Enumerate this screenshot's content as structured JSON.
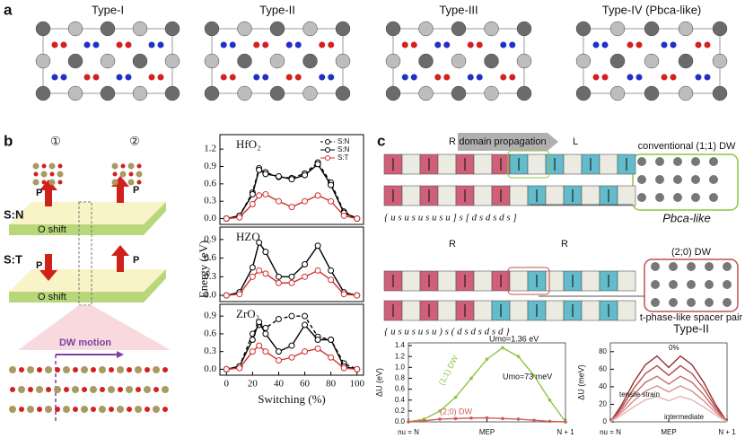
{
  "panel_a": {
    "label": "a",
    "titles": [
      "Type-I",
      "Type-II",
      "Type-III",
      "Type-IV (Pbca-like)"
    ]
  },
  "panel_b": {
    "label": "b",
    "sites": [
      "①",
      "②"
    ],
    "states": [
      "S:N",
      "S:T"
    ],
    "polarization": "P",
    "o_shift": "O shift",
    "dw_motion": "DW motion",
    "y_label": "Energy (eV)",
    "x_label": "Switching (%)"
  },
  "panel_c": {
    "label": "c",
    "hands": [
      "R",
      "L",
      "R",
      "R"
    ],
    "propagation": "domain propagation",
    "rows": [
      "{ u s u s u s u s u ] s [ d s d s d s ]",
      "{ u s u s u s u ) s ( d s d s d s d }"
    ],
    "dw_top": "conventional (1;1) DW",
    "dw_top_name": "Pbca-like",
    "dw_bottom": "(2;0) DW",
    "dw_bottom_note": "t-phase-like spacer pair",
    "dw_bottom_name": "Type-II"
  },
  "chart_data": [
    {
      "type": "line",
      "title": "HfO₂",
      "x": [
        0,
        10,
        20,
        25,
        30,
        40,
        50,
        60,
        70,
        80,
        90,
        100
      ],
      "xlim": [
        -5,
        105
      ],
      "ylim": [
        -0.1,
        1.45
      ],
      "yticks": [
        {
          "value": 0,
          "label": "0.0"
        },
        0.3,
        0.6,
        0.9,
        1.2
      ],
      "legend": "upper right",
      "markers": true,
      "series": [
        {
          "name": "S:N",
          "color": "#000000",
          "dash": true,
          "values": [
            0,
            0.05,
            0.45,
            0.87,
            0.8,
            0.72,
            0.7,
            0.78,
            0.97,
            0.62,
            0.12,
            0
          ]
        },
        {
          "name": "S:N",
          "color": "#000000",
          "values": [
            0,
            0.05,
            0.42,
            0.84,
            0.77,
            0.73,
            0.68,
            0.75,
            0.94,
            0.58,
            0.1,
            0
          ]
        },
        {
          "name": "S:T",
          "color": "#d03030",
          "values": [
            0,
            0.02,
            0.25,
            0.4,
            0.42,
            0.3,
            0.2,
            0.3,
            0.4,
            0.3,
            0.05,
            0
          ]
        }
      ]
    },
    {
      "type": "line",
      "title": "HZO",
      "x": [
        0,
        10,
        20,
        25,
        30,
        40,
        50,
        60,
        70,
        80,
        90,
        100
      ],
      "xlim": [
        -5,
        105
      ],
      "ylim": [
        -0.1,
        1.1
      ],
      "yticks": [
        {
          "value": 0,
          "label": "0.0"
        },
        0.3,
        0.6,
        0.9
      ],
      "markers": true,
      "series": [
        {
          "color": "#000000",
          "values": [
            0,
            0.05,
            0.45,
            0.85,
            0.7,
            0.3,
            0.3,
            0.5,
            0.8,
            0.4,
            0.05,
            0
          ]
        },
        {
          "color": "#d03030",
          "values": [
            0,
            0.02,
            0.3,
            0.4,
            0.35,
            0.2,
            0.2,
            0.3,
            0.4,
            0.25,
            0.02,
            0
          ]
        }
      ]
    },
    {
      "type": "line",
      "title": "ZrO₂",
      "x": [
        0,
        10,
        20,
        25,
        30,
        40,
        50,
        60,
        70,
        80,
        90,
        100
      ],
      "xlim": [
        -5,
        105
      ],
      "ylim": [
        -0.1,
        1.1
      ],
      "yticks": [
        {
          "value": 0,
          "label": "0.0"
        },
        0.3,
        0.6,
        0.9
      ],
      "xticks": [
        0,
        20,
        40,
        60,
        80,
        100
      ],
      "markers": true,
      "series": [
        {
          "color": "#000000",
          "dash": true,
          "values": [
            0,
            0.05,
            0.6,
            0.75,
            0.7,
            0.85,
            0.9,
            0.9,
            0.55,
            0.5,
            0.1,
            0
          ]
        },
        {
          "color": "#000000",
          "values": [
            0,
            0.05,
            0.5,
            0.8,
            0.6,
            0.3,
            0.4,
            0.75,
            0.5,
            0.5,
            0.05,
            0
          ]
        },
        {
          "color": "#d03030",
          "values": [
            0,
            0.02,
            0.3,
            0.4,
            0.3,
            0.15,
            0.2,
            0.3,
            0.35,
            0.2,
            0.02,
            0
          ]
        }
      ]
    },
    {
      "type": "line",
      "y_label": "ΔU (eV)",
      "x": [
        0,
        1,
        2,
        3,
        4,
        5,
        6,
        7,
        8,
        9,
        10
      ],
      "xlim": [
        0,
        10
      ],
      "ylim": [
        0,
        1.45
      ],
      "xticks": [
        {
          "value": 0,
          "label": "nu = N"
        },
        {
          "value": 5,
          "label": "MEP"
        },
        {
          "value": 10,
          "label": "N + 1"
        }
      ],
      "yticks": [
        {
          "value": 0,
          "label": "0.0"
        },
        0.2,
        0.4,
        0.6,
        0.8,
        {
          "value": 1,
          "label": "1.0"
        },
        1.2,
        1.4
      ],
      "annotations": [
        "Umo=1.36 eV",
        "Umo=73 meV"
      ],
      "series": [
        {
          "name": "(1;1) DW",
          "color": "#8cc63f",
          "values": [
            0,
            0.05,
            0.2,
            0.45,
            0.8,
            1.15,
            1.36,
            1.2,
            0.85,
            0.4,
            0
          ]
        },
        {
          "name": "(2;0) DW",
          "color": "#d05a5a",
          "values": [
            0,
            0.02,
            0.05,
            0.06,
            0.07,
            0.073,
            0.06,
            0.05,
            0.03,
            0.01,
            0
          ]
        }
      ]
    },
    {
      "type": "line",
      "y_label": "ΔU (meV)",
      "x": [
        0,
        1,
        2,
        3,
        4,
        5,
        6,
        7,
        8,
        9,
        10
      ],
      "xlim": [
        0,
        10
      ],
      "ylim": [
        0,
        90
      ],
      "xticks": [
        {
          "value": 0,
          "label": "nu = N"
        },
        {
          "value": 5,
          "label": "MEP"
        },
        {
          "value": 10,
          "label": "N + 1"
        }
      ],
      "yticks": [
        0,
        20,
        40,
        60,
        80
      ],
      "annotations": [
        "0%",
        "tensile strain",
        "intermediate"
      ],
      "series": [
        {
          "color": "#9b2d2d",
          "values": [
            0,
            20,
            45,
            65,
            75,
            62,
            75,
            65,
            45,
            20,
            0
          ]
        },
        {
          "color": "#b44b4b",
          "values": [
            0,
            17,
            38,
            55,
            64,
            53,
            64,
            55,
            38,
            17,
            0
          ]
        },
        {
          "color": "#c96b6b",
          "values": [
            0,
            14,
            31,
            45,
            52,
            43,
            52,
            45,
            31,
            14,
            0
          ]
        },
        {
          "color": "#d98f8f",
          "values": [
            0,
            11,
            24,
            35,
            41,
            34,
            41,
            35,
            24,
            11,
            0
          ]
        },
        {
          "color": "#e8b5b5",
          "values": [
            0,
            8,
            17,
            25,
            29,
            24,
            29,
            25,
            17,
            8,
            0
          ]
        }
      ]
    }
  ]
}
